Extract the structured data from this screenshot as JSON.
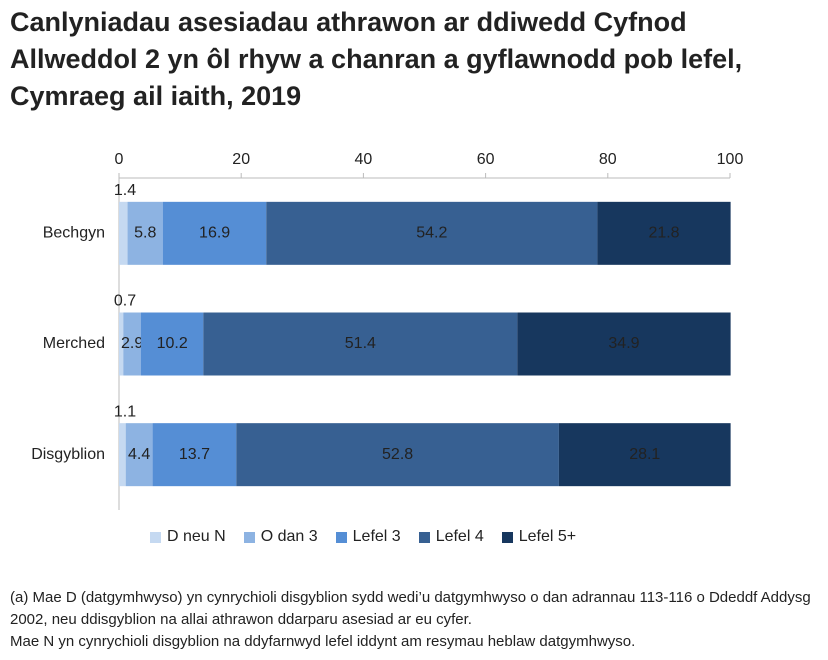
{
  "chart_data": {
    "type": "stacked-bar-horizontal",
    "title": "Canlyniadau asesiadau athrawon ar ddiwedd Cyfnod Allweddol 2 yn ôl rhyw a chanran a gyflawnodd pob lefel, Cymraeg ail iaith, 2019",
    "categories": [
      "Bechgyn",
      "Merched",
      "Disgyblion"
    ],
    "series": [
      {
        "name": "D neu N",
        "color": "#c5d9f1",
        "values": [
          1.4,
          0.7,
          1.1
        ]
      },
      {
        "name": "O dan 3",
        "color": "#8db3e2",
        "values": [
          5.8,
          2.9,
          4.4
        ]
      },
      {
        "name": "Lefel 3",
        "color": "#558ed5",
        "values": [
          16.9,
          10.2,
          13.7
        ]
      },
      {
        "name": "Lefel 4",
        "color": "#376092",
        "values": [
          54.2,
          51.4,
          52.8
        ]
      },
      {
        "name": "Lefel 5+",
        "color": "#17375e",
        "values": [
          21.8,
          34.9,
          28.1
        ]
      }
    ],
    "xlim": [
      0,
      100
    ],
    "xticks": [
      0,
      20,
      40,
      60,
      80,
      100
    ],
    "legend": "bottom",
    "footnotes": [
      "(a) Mae D (datgymhwyso) yn cynrychioli disgyblion sydd wedi’u datgymhwyso o dan adrannau 113-116 o Ddeddf Addysg 2002, neu ddisgyblion na allai athrawon ddarparu asesiad ar eu cyfer.",
      "Mae N yn cynrychioli disgyblion na ddyfarnwyd lefel iddynt am resymau heblaw datgymhwyso."
    ]
  }
}
